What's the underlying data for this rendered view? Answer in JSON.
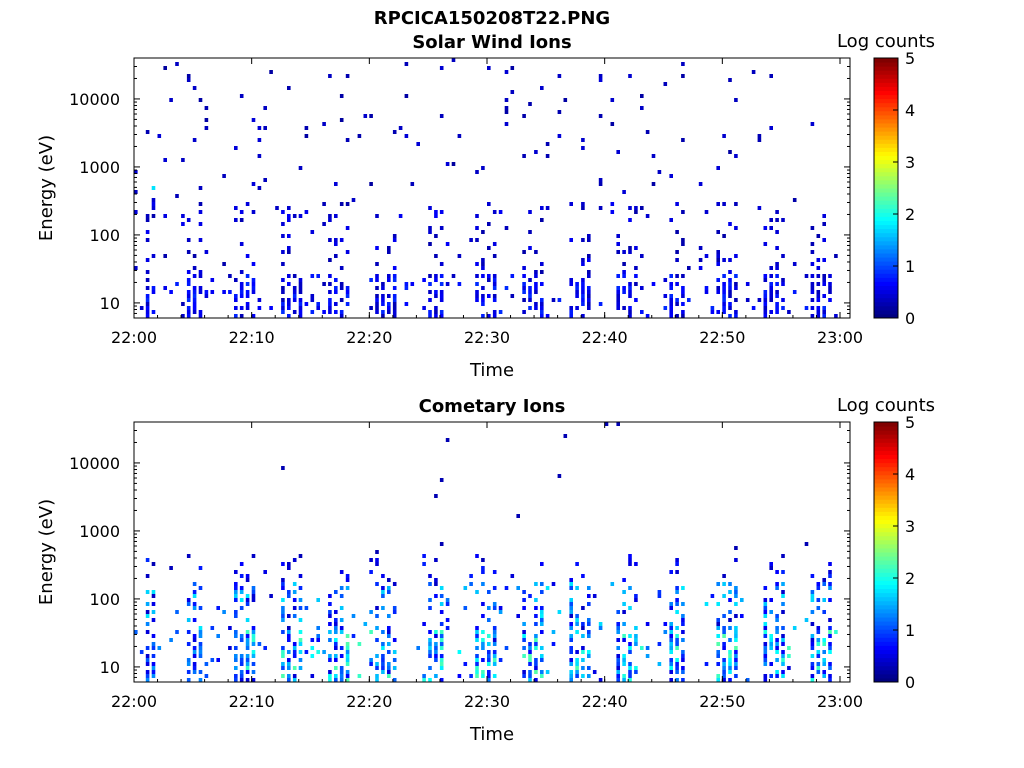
{
  "figure": {
    "title": "RPCICA150208T22.PNG"
  },
  "chart_data": [
    {
      "type": "heatmap",
      "title": "Solar Wind Ions",
      "xlabel": "Time",
      "ylabel": "Energy (eV)",
      "x_ticks": [
        "22:00",
        "22:10",
        "22:20",
        "22:30",
        "22:40",
        "22:50",
        "23:00"
      ],
      "xlim": [
        "22:00",
        "23:00"
      ],
      "y_scale": "log",
      "y_ticks": [
        "10",
        "100",
        "1000",
        "10000"
      ],
      "ylim": [
        6,
        40000
      ],
      "grid": false,
      "colorbar": {
        "label": "Log counts",
        "ticks": [
          "0",
          "1",
          "2",
          "3",
          "4",
          "5"
        ],
        "range": [
          0,
          5
        ],
        "colormap": "jet"
      },
      "legend": "colorbar, right"
    },
    {
      "type": "heatmap",
      "title": "Cometary Ions",
      "xlabel": "Time",
      "ylabel": "Energy (eV)",
      "x_ticks": [
        "22:00",
        "22:10",
        "22:20",
        "22:30",
        "22:40",
        "22:50",
        "23:00"
      ],
      "xlim": [
        "22:00",
        "23:00"
      ],
      "y_scale": "log",
      "y_ticks": [
        "10",
        "100",
        "1000",
        "10000"
      ],
      "ylim": [
        6,
        40000
      ],
      "grid": false,
      "colorbar": {
        "label": "Log counts",
        "ticks": [
          "0",
          "1",
          "2",
          "3",
          "4",
          "5"
        ],
        "range": [
          0,
          5
        ],
        "colormap": "jet"
      },
      "legend": "colorbar, right"
    }
  ]
}
